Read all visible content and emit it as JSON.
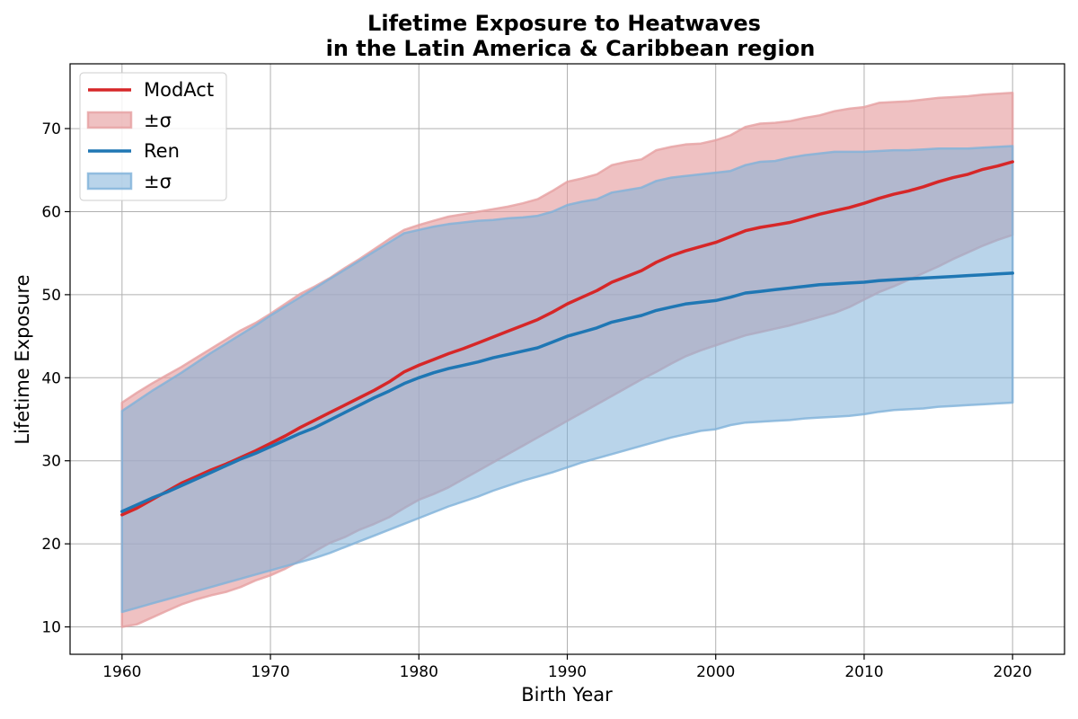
{
  "chart_data": {
    "type": "line",
    "title_line1": "Lifetime Exposure to Heatwaves",
    "title_line2": "in the Latin America & Caribbean region",
    "xlabel": "Birth Year",
    "ylabel": "Lifetime Exposure",
    "xlim": [
      1956.5,
      2023.5
    ],
    "ylim": [
      6.7,
      77.8
    ],
    "xticks": [
      1960,
      1970,
      1980,
      1990,
      2000,
      2010,
      2020
    ],
    "yticks": [
      10,
      20,
      30,
      40,
      50,
      60,
      70
    ],
    "grid": true,
    "legend_position": "upper-left",
    "x": [
      1960,
      1961,
      1962,
      1963,
      1964,
      1965,
      1966,
      1967,
      1968,
      1969,
      1970,
      1971,
      1972,
      1973,
      1974,
      1975,
      1976,
      1977,
      1978,
      1979,
      1980,
      1981,
      1982,
      1983,
      1984,
      1985,
      1986,
      1987,
      1988,
      1989,
      1990,
      1991,
      1992,
      1993,
      1994,
      1995,
      1996,
      1997,
      1998,
      1999,
      2000,
      2001,
      2002,
      2003,
      2004,
      2005,
      2006,
      2007,
      2008,
      2009,
      2010,
      2011,
      2012,
      2013,
      2014,
      2015,
      2016,
      2017,
      2018,
      2019,
      2020
    ],
    "series": [
      {
        "name": "ModAct",
        "band_label": "±σ",
        "color": "#d62728",
        "band_color": "#e6a0a1",
        "values": [
          23.5,
          24.3,
          25.3,
          26.3,
          27.3,
          28.1,
          28.9,
          29.6,
          30.4,
          31.2,
          32.1,
          33.0,
          34.0,
          34.9,
          35.8,
          36.7,
          37.6,
          38.5,
          39.5,
          40.7,
          41.5,
          42.2,
          42.9,
          43.5,
          44.2,
          44.9,
          45.6,
          46.3,
          47.0,
          47.9,
          48.9,
          49.7,
          50.5,
          51.5,
          52.2,
          52.9,
          53.9,
          54.7,
          55.3,
          55.8,
          56.3,
          57.0,
          57.7,
          58.1,
          58.4,
          58.7,
          59.2,
          59.7,
          60.1,
          60.5,
          61.0,
          61.6,
          62.1,
          62.5,
          63.0,
          63.6,
          64.1,
          64.5,
          65.1,
          65.5,
          66.0
        ],
        "upper": [
          37.0,
          38.2,
          39.3,
          40.3,
          41.3,
          42.4,
          43.5,
          44.6,
          45.7,
          46.6,
          47.7,
          48.9,
          50.1,
          51.0,
          52.0,
          53.2,
          54.3,
          55.5,
          56.7,
          57.8,
          58.4,
          58.9,
          59.4,
          59.7,
          60.0,
          60.3,
          60.6,
          61.0,
          61.5,
          62.5,
          63.6,
          64.0,
          64.5,
          65.6,
          66.0,
          66.3,
          67.4,
          67.8,
          68.1,
          68.2,
          68.6,
          69.2,
          70.2,
          70.6,
          70.7,
          70.9,
          71.3,
          71.6,
          72.1,
          72.4,
          72.6,
          73.1,
          73.2,
          73.3,
          73.5,
          73.7,
          73.8,
          73.9,
          74.1,
          74.2,
          74.3
        ],
        "lower": [
          10.0,
          10.3,
          11.1,
          11.9,
          12.7,
          13.3,
          13.8,
          14.2,
          14.8,
          15.6,
          16.2,
          17.0,
          18.0,
          19.1,
          20.1,
          20.8,
          21.7,
          22.4,
          23.2,
          24.3,
          25.3,
          26.0,
          26.8,
          27.8,
          28.8,
          29.8,
          30.8,
          31.8,
          32.8,
          33.8,
          34.8,
          35.8,
          36.8,
          37.8,
          38.8,
          39.8,
          40.7,
          41.7,
          42.6,
          43.3,
          43.9,
          44.5,
          45.1,
          45.5,
          45.9,
          46.3,
          46.8,
          47.3,
          47.8,
          48.5,
          49.4,
          50.3,
          51.0,
          51.8,
          52.6,
          53.4,
          54.3,
          55.1,
          55.9,
          56.6,
          57.2
        ]
      },
      {
        "name": "Ren",
        "band_label": "±σ",
        "color": "#1f77b4",
        "band_color": "#7fb1d9",
        "values": [
          23.9,
          24.7,
          25.5,
          26.2,
          27.0,
          27.8,
          28.6,
          29.4,
          30.2,
          30.9,
          31.7,
          32.5,
          33.3,
          34.0,
          34.9,
          35.8,
          36.7,
          37.6,
          38.4,
          39.3,
          40.0,
          40.6,
          41.1,
          41.5,
          41.9,
          42.4,
          42.8,
          43.2,
          43.6,
          44.3,
          45.0,
          45.5,
          46.0,
          46.7,
          47.1,
          47.5,
          48.1,
          48.5,
          48.9,
          49.1,
          49.3,
          49.7,
          50.2,
          50.4,
          50.6,
          50.8,
          51.0,
          51.2,
          51.3,
          51.4,
          51.5,
          51.7,
          51.8,
          51.9,
          52.0,
          52.1,
          52.2,
          52.3,
          52.4,
          52.5,
          52.6
        ],
        "upper": [
          36.0,
          37.2,
          38.4,
          39.5,
          40.6,
          41.8,
          43.0,
          44.1,
          45.2,
          46.3,
          47.5,
          48.6,
          49.7,
          50.8,
          51.9,
          53.0,
          54.1,
          55.2,
          56.3,
          57.4,
          57.8,
          58.2,
          58.5,
          58.7,
          58.9,
          59.0,
          59.2,
          59.3,
          59.5,
          60.0,
          60.8,
          61.2,
          61.5,
          62.3,
          62.6,
          62.9,
          63.7,
          64.1,
          64.3,
          64.5,
          64.7,
          64.9,
          65.6,
          66.0,
          66.1,
          66.5,
          66.8,
          67.0,
          67.2,
          67.2,
          67.2,
          67.3,
          67.4,
          67.4,
          67.5,
          67.6,
          67.6,
          67.6,
          67.7,
          67.8,
          67.9
        ],
        "lower": [
          11.8,
          12.3,
          12.8,
          13.3,
          13.8,
          14.3,
          14.8,
          15.3,
          15.8,
          16.3,
          16.8,
          17.3,
          17.8,
          18.3,
          18.9,
          19.6,
          20.3,
          21.0,
          21.7,
          22.4,
          23.1,
          23.8,
          24.5,
          25.1,
          25.7,
          26.4,
          27.0,
          27.6,
          28.1,
          28.6,
          29.2,
          29.8,
          30.3,
          30.8,
          31.3,
          31.8,
          32.3,
          32.8,
          33.2,
          33.6,
          33.8,
          34.3,
          34.6,
          34.7,
          34.8,
          34.9,
          35.1,
          35.2,
          35.3,
          35.4,
          35.6,
          35.9,
          36.1,
          36.2,
          36.3,
          36.5,
          36.6,
          36.7,
          36.8,
          36.9,
          37.0
        ]
      }
    ]
  }
}
